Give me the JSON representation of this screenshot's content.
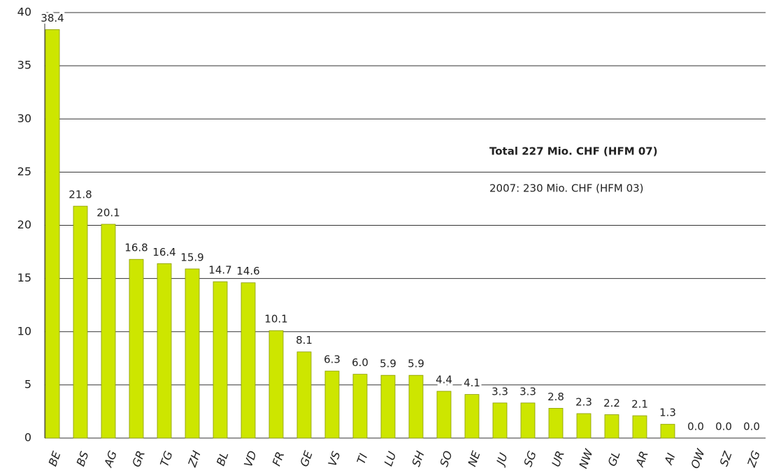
{
  "chart_data": {
    "type": "bar",
    "categories": [
      "BE",
      "BS",
      "AG",
      "GR",
      "TG",
      "ZH",
      "BL",
      "VD",
      "FR",
      "GE",
      "VS",
      "TI",
      "LU",
      "SH",
      "SO",
      "NE",
      "JU",
      "SG",
      "UR",
      "NW",
      "GL",
      "AR",
      "AI",
      "OW",
      "SZ",
      "ZG"
    ],
    "values": [
      38.4,
      21.8,
      20.1,
      16.8,
      16.4,
      15.9,
      14.7,
      14.6,
      10.1,
      8.1,
      6.3,
      6.0,
      5.9,
      5.9,
      4.4,
      4.1,
      3.3,
      3.3,
      2.8,
      2.3,
      2.2,
      2.1,
      1.3,
      0,
      0,
      0
    ],
    "value_labels": [
      "38.4",
      "21.8",
      "20.1",
      "16.8",
      "16.4",
      "15.9",
      "14.7",
      "14.6",
      "10.1",
      "8.1",
      "6.3",
      "6.0",
      "5.9",
      "5.9",
      "4.4",
      "4.1",
      "3.3",
      "3.3",
      "2.8",
      "2.3",
      "2.2",
      "2.1",
      "1.3",
      "0.0",
      "0.0",
      "0.0"
    ],
    "color": "#cde600",
    "ylim": [
      0,
      40
    ],
    "yticks": [
      0,
      5,
      10,
      15,
      20,
      25,
      30,
      35,
      40
    ],
    "grid": true,
    "annotations": [
      "Total 227 Mio. CHF (HFM 07)",
      "2007: 230 Mio. CHF (HFM 03)"
    ]
  }
}
